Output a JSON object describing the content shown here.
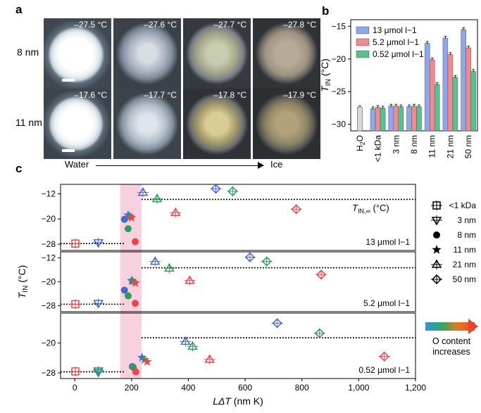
{
  "panel_a": {
    "letter": "a",
    "rows": [
      {
        "label": "8 nm",
        "temps": [
          "–27.5 °C",
          "–27.6 °C",
          "–27.7 °C",
          "–27.8 °C"
        ]
      },
      {
        "label": "11 nm",
        "temps": [
          "–17.6 °C",
          "–17.7 °C",
          "–17.8 °C",
          "–17.9 °C"
        ]
      }
    ],
    "arrow_start": "Water",
    "arrow_end": "Ice"
  },
  "panel_b": {
    "letter": "b"
  },
  "panel_c": {
    "letter": "c",
    "vertical_label": "O content increases"
  },
  "chart_data": [
    {
      "type": "bar",
      "panel": "b",
      "ylabel": "T_IN (°C)",
      "ylim": [
        -31,
        -14
      ],
      "yticks": [
        -30,
        -25,
        -20,
        -15
      ],
      "categories": [
        "H2O",
        "<1 kDa",
        "3 nm",
        "8 nm",
        "11 nm",
        "21 nm",
        "50 nm"
      ],
      "series": [
        {
          "name": "13 μmol l−1",
          "color": "#8fa7e6",
          "values": [
            -27.4,
            -27.6,
            -27.2,
            -27.3,
            -17.6,
            -16.8,
            -15.5
          ]
        },
        {
          "name": "5.2 μmol l−1",
          "color": "#f08a92",
          "values": [
            null,
            -27.4,
            -27.2,
            -27.2,
            -20.1,
            -19.3,
            -18.3
          ]
        },
        {
          "name": "0.52 μmol l−1",
          "color": "#5cbf92",
          "values": [
            null,
            -27.5,
            -27.3,
            -27.3,
            -23.9,
            -22.8,
            -21.9
          ]
        }
      ],
      "h2o_bar": {
        "color": "#d9d9d9",
        "value": -27.4
      }
    },
    {
      "type": "scatter",
      "panel": "c",
      "xlabel": "LΔT (nm K)",
      "ylabel": "T_IN (°C)",
      "xlim": [
        -50,
        1200
      ],
      "xticks": [
        0,
        200,
        400,
        600,
        800,
        "1,000",
        "1,200"
      ],
      "xtick_values": [
        0,
        200,
        400,
        600,
        800,
        1000,
        1200
      ],
      "plateau_label": "T_IN,∞ (°C)",
      "legend": [
        {
          "marker": "square",
          "label": "<1 kDa"
        },
        {
          "marker": "triangle-down",
          "label": "3 nm"
        },
        {
          "marker": "circle",
          "label": "8 nm"
        },
        {
          "marker": "star",
          "label": "11 nm"
        },
        {
          "marker": "triangle-up",
          "label": "21 nm"
        },
        {
          "marker": "diamond",
          "label": "50 nm"
        }
      ],
      "subplots": [
        {
          "label": "13 μmol l−1",
          "yticks": [
            -12,
            -20,
            -28
          ],
          "ylim": [
            -30,
            -9
          ],
          "plateau": -13.8,
          "low_line": -27.8,
          "points": [
            {
              "m": "square",
              "x": 2,
              "y": -27.8,
              "c": "#e8454f"
            },
            {
              "m": "triangle-down",
              "x": 83,
              "y": -27.5,
              "c": "#4a67c9"
            },
            {
              "m": "circle",
              "x": 175,
              "y": -20.1,
              "c": "#4a67c9"
            },
            {
              "m": "circle",
              "x": 188,
              "y": -23.1,
              "c": "#2f9a5a"
            },
            {
              "m": "circle",
              "x": 213,
              "y": -27.2,
              "c": "#e8454f"
            },
            {
              "m": "star",
              "x": 188,
              "y": -18.8,
              "c": "#4a67c9"
            },
            {
              "m": "star",
              "x": 195,
              "y": -19.2,
              "c": "#2f9a5a"
            },
            {
              "m": "star",
              "x": 200,
              "y": -19.6,
              "c": "#e8454f"
            },
            {
              "m": "triangle-up",
              "x": 240,
              "y": -11.6,
              "c": "#4a67c9"
            },
            {
              "m": "triangle-up",
              "x": 290,
              "y": -13.6,
              "c": "#2f9a5a"
            },
            {
              "m": "triangle-up",
              "x": 355,
              "y": -18.0,
              "c": "#e8454f"
            },
            {
              "m": "diamond",
              "x": 497,
              "y": -10.4,
              "c": "#4a67c9"
            },
            {
              "m": "diamond",
              "x": 556,
              "y": -11.2,
              "c": "#2f9a5a"
            },
            {
              "m": "diamond",
              "x": 780,
              "y": -16.9,
              "c": "#e8454f"
            }
          ]
        },
        {
          "label": "5.2 μmol l−1",
          "yticks": [
            -12,
            -20,
            -28
          ],
          "ylim": [
            -30,
            -10
          ],
          "plateau": -15.3,
          "low_line": -27.5,
          "points": [
            {
              "m": "square",
              "x": 2,
              "y": -27.5,
              "c": "#e8454f"
            },
            {
              "m": "triangle-down",
              "x": 83,
              "y": -27.2,
              "c": "#4a67c9"
            },
            {
              "m": "circle",
              "x": 175,
              "y": -22.8,
              "c": "#4a67c9"
            },
            {
              "m": "circle",
              "x": 188,
              "y": -24.7,
              "c": "#2f9a5a"
            },
            {
              "m": "circle",
              "x": 213,
              "y": -27.2,
              "c": "#e8454f"
            },
            {
              "m": "star",
              "x": 200,
              "y": -19.6,
              "c": "#4a67c9"
            },
            {
              "m": "star",
              "x": 205,
              "y": -19.9,
              "c": "#2f9a5a"
            },
            {
              "m": "star",
              "x": 213,
              "y": -20.4,
              "c": "#e8454f"
            },
            {
              "m": "triangle-up",
              "x": 283,
              "y": -13.2,
              "c": "#4a67c9"
            },
            {
              "m": "triangle-up",
              "x": 333,
              "y": -15.5,
              "c": "#2f9a5a"
            },
            {
              "m": "triangle-up",
              "x": 405,
              "y": -19.6,
              "c": "#e8454f"
            },
            {
              "m": "diamond",
              "x": 617,
              "y": -11.8,
              "c": "#4a67c9"
            },
            {
              "m": "diamond",
              "x": 676,
              "y": -13.2,
              "c": "#2f9a5a"
            },
            {
              "m": "diamond",
              "x": 868,
              "y": -17.6,
              "c": "#e8454f"
            }
          ]
        },
        {
          "label": "0.52 μmol l−1",
          "yticks": [
            -20,
            -28
          ],
          "ylim": [
            -29.5,
            -12
          ],
          "plateau": -18.6,
          "low_line": -27.7,
          "points": [
            {
              "m": "square",
              "x": 2,
              "y": -27.6,
              "c": "#e8454f"
            },
            {
              "m": "triangle-down",
              "x": 83,
              "y": -27.8,
              "c": "#4a67c9"
            },
            {
              "m": "triangle-down",
              "x": 83,
              "y": -27.4,
              "c": "#2f9a5a"
            },
            {
              "m": "circle",
              "x": 203,
              "y": -26.3,
              "c": "#4a67c9"
            },
            {
              "m": "circle",
              "x": 206,
              "y": -26.5,
              "c": "#2f9a5a"
            },
            {
              "m": "circle",
              "x": 215,
              "y": -27.7,
              "c": "#e8454f"
            },
            {
              "m": "star",
              "x": 237,
              "y": -23.9,
              "c": "#4a67c9"
            },
            {
              "m": "star",
              "x": 245,
              "y": -24.5,
              "c": "#2f9a5a"
            },
            {
              "m": "star",
              "x": 255,
              "y": -25.0,
              "c": "#e8454f"
            },
            {
              "m": "triangle-up",
              "x": 390,
              "y": -19.6,
              "c": "#4a67c9"
            },
            {
              "m": "triangle-up",
              "x": 415,
              "y": -20.9,
              "c": "#2f9a5a"
            },
            {
              "m": "triangle-up",
              "x": 475,
              "y": -24.4,
              "c": "#e8454f"
            },
            {
              "m": "diamond",
              "x": 713,
              "y": -14.7,
              "c": "#4a67c9"
            },
            {
              "m": "diamond",
              "x": 862,
              "y": -17.4,
              "c": "#2f9a5a"
            },
            {
              "m": "diamond",
              "x": 1090,
              "y": -23.6,
              "c": "#e8454f"
            }
          ]
        }
      ]
    }
  ]
}
